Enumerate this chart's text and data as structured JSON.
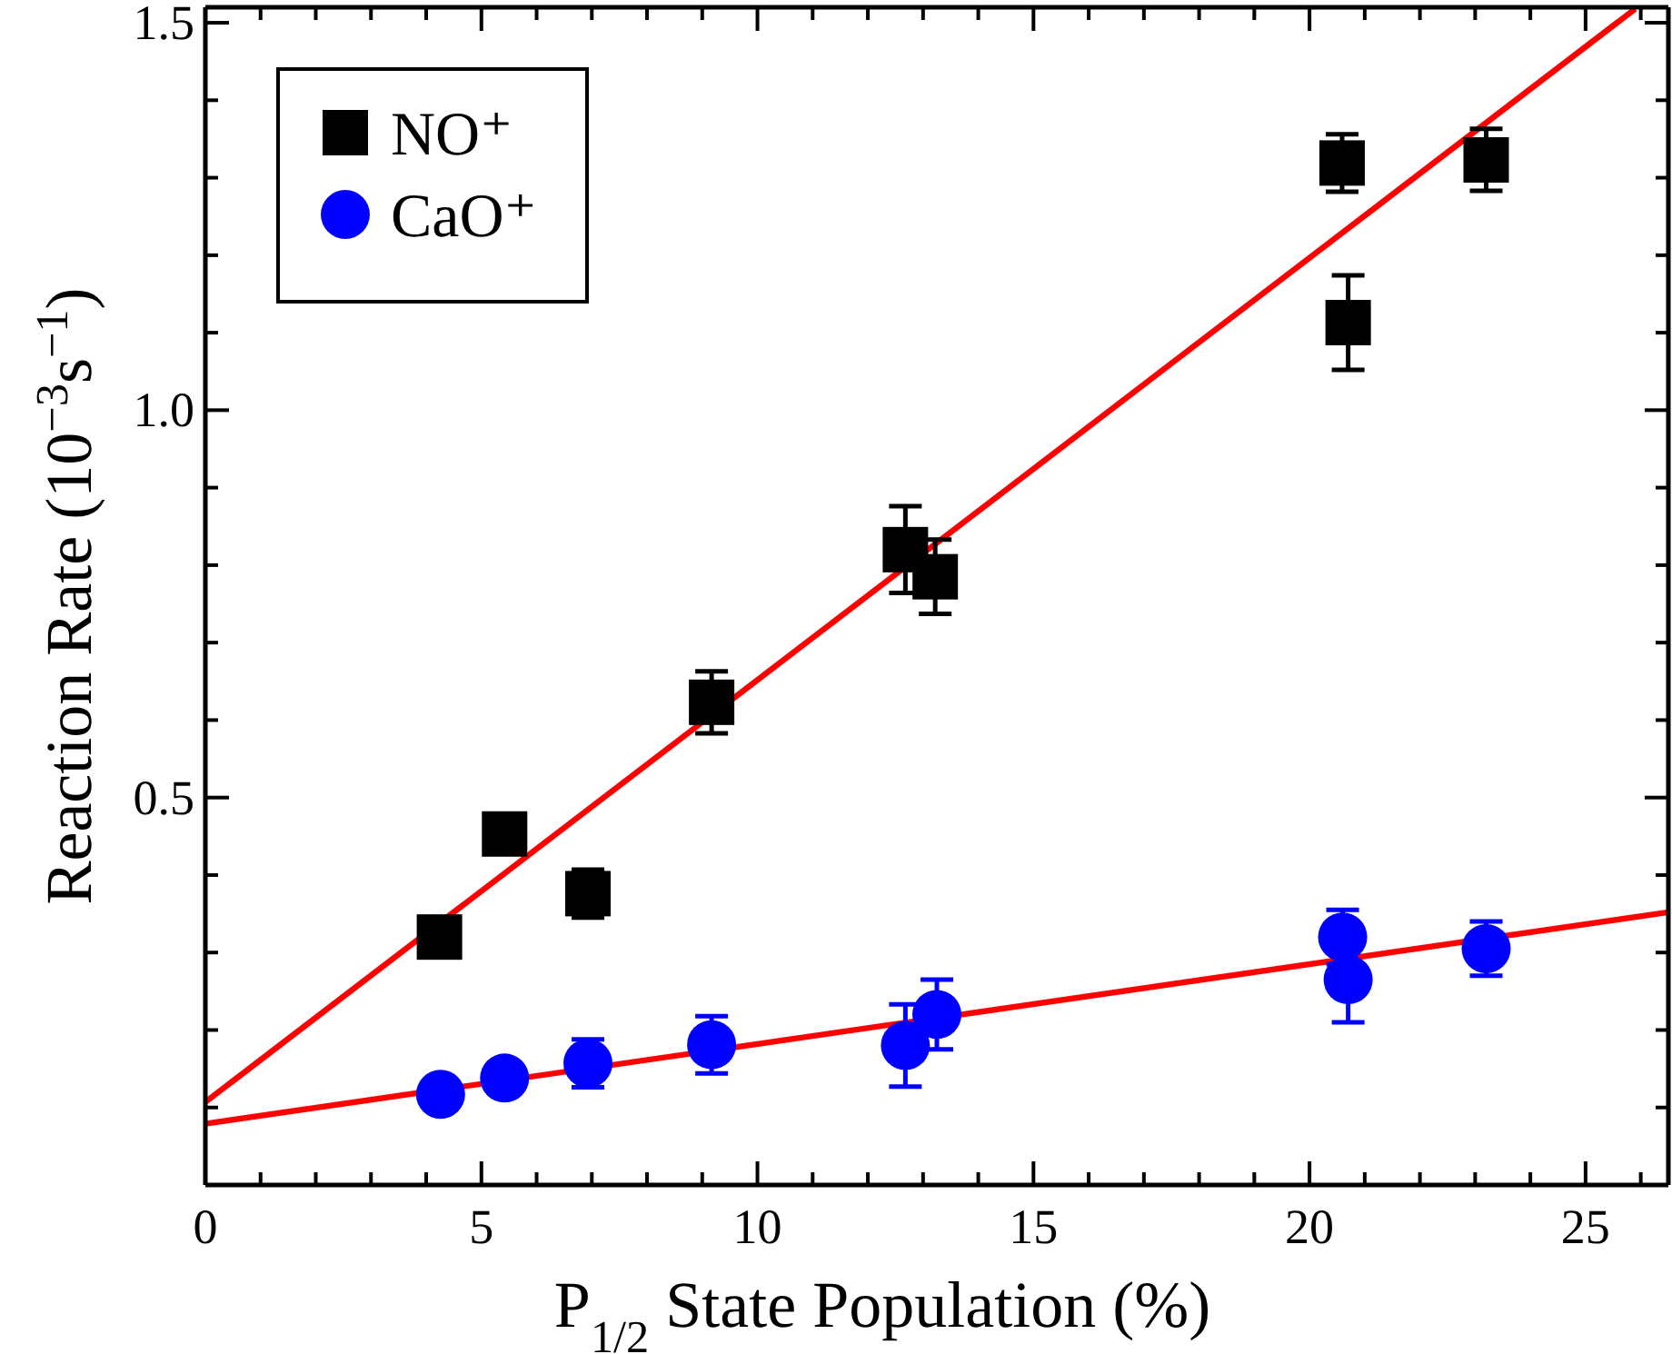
{
  "chart_data": {
    "type": "scatter",
    "xlabel": "P$_{1/2}$ State Population (%)",
    "ylabel": "Reaction Rate (10$^{−3}$s$^{−1}$)",
    "xlim": [
      0,
      26.5
    ],
    "ylim": [
      0,
      1.52
    ],
    "xticks": [
      0,
      {
        "value": 1,
        "label": null
      },
      {
        "value": 2,
        "label": null
      },
      {
        "value": 3,
        "label": null
      },
      {
        "value": 4,
        "label": null
      },
      5,
      {
        "value": 6,
        "label": null
      },
      {
        "value": 7,
        "label": null
      },
      {
        "value": 8,
        "label": null
      },
      {
        "value": 9,
        "label": null
      },
      10,
      {
        "value": 11,
        "label": null
      },
      {
        "value": 12,
        "label": null
      },
      {
        "value": 13,
        "label": null
      },
      {
        "value": 14,
        "label": null
      },
      15,
      {
        "value": 16,
        "label": null
      },
      {
        "value": 17,
        "label": null
      },
      {
        "value": 18,
        "label": null
      },
      {
        "value": 19,
        "label": null
      },
      20,
      {
        "value": 21,
        "label": null
      },
      {
        "value": 22,
        "label": null
      },
      {
        "value": 23,
        "label": null
      },
      {
        "value": 24,
        "label": null
      },
      25,
      {
        "value": 26,
        "label": null
      }
    ],
    "yticks": [
      {
        "value": 0.1,
        "label": null
      },
      {
        "value": 0.2,
        "label": null
      },
      {
        "value": 0.3,
        "label": null
      },
      {
        "value": 0.4,
        "label": null
      },
      0.5,
      {
        "value": 0.6,
        "label": null
      },
      {
        "value": 0.7,
        "label": null
      },
      {
        "value": 0.8,
        "label": null
      },
      {
        "value": 0.9,
        "label": null
      },
      {
        "value": 1.0,
        "label": "1.0"
      },
      {
        "value": 1.1,
        "label": null
      },
      {
        "value": 1.2,
        "label": null
      },
      {
        "value": 1.3,
        "label": null
      },
      {
        "value": 1.4,
        "label": null
      },
      1.5
    ],
    "legend": "top left",
    "series": [
      {
        "type": "line",
        "color": "#ff0000",
        "x": [
          0,
          25.9
        ],
        "values": [
          0.107,
          1.518
        ],
        "line_style": "solid"
      },
      {
        "type": "line",
        "color": "#ff0000",
        "x": [
          0,
          26.5
        ],
        "values": [
          0.079,
          0.352
        ],
        "line_style": "solid"
      },
      {
        "name": "NO⁺",
        "marker": "square",
        "color": "#000000",
        "x": [
          4.24,
          5.42,
          6.93,
          9.17,
          12.68,
          13.22,
          20.59,
          20.7,
          23.2
        ],
        "values": [
          0.32,
          0.453,
          0.376,
          0.623,
          0.82,
          0.785,
          1.319,
          1.113,
          1.323
        ],
        "errors": [
          null,
          null,
          0.031,
          0.04,
          0.056,
          0.048,
          0.037,
          0.061,
          0.04
        ]
      },
      {
        "name": "CaO⁺",
        "marker": "circle",
        "color": "#0000ff",
        "x": [
          4.26,
          5.42,
          6.93,
          9.17,
          12.68,
          13.25,
          20.6,
          20.7,
          23.2
        ],
        "values": [
          0.117,
          0.138,
          0.157,
          0.181,
          0.18,
          0.22,
          0.32,
          0.265,
          0.305
        ],
        "errors": [
          0.02,
          0.02,
          0.031,
          0.037,
          0.053,
          0.045,
          0.035,
          0.055,
          0.035
        ]
      }
    ]
  }
}
